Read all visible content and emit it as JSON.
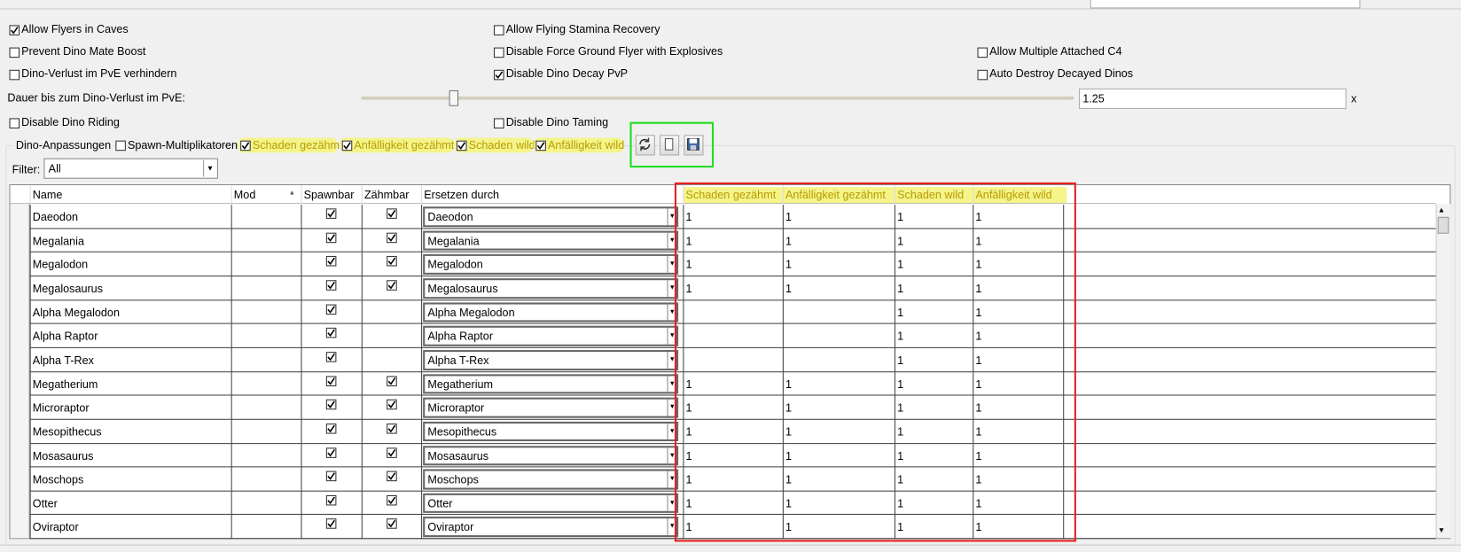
{
  "general_options": [
    {
      "label": "Allow Flyers in Caves",
      "checked": true
    },
    {
      "label": "Allow Flying Stamina Recovery",
      "checked": false
    },
    {
      "label": "Prevent Dino Mate Boost",
      "checked": false
    },
    {
      "label": "Disable Force Ground Flyer with Explosives",
      "checked": false
    },
    {
      "label": "Allow Multiple Attached C4",
      "checked": false
    },
    {
      "label": "Dino-Verlust im PvE verhindern",
      "checked": false
    },
    {
      "label": "Disable Dino Decay PvP",
      "checked": true
    },
    {
      "label": "Auto Destroy Decayed Dinos",
      "checked": false
    },
    {
      "label": "Disable Dino Riding",
      "checked": false
    },
    {
      "label": "Disable Dino Taming",
      "checked": false
    }
  ],
  "dino_loss_duration": {
    "label": "Dauer bis zum Dino-Verlust im PvE:",
    "value": 1.25,
    "unit": "x"
  },
  "dino_adjustments": {
    "title": "Dino-Anpassungen",
    "options": [
      {
        "label": "Spawn-Multiplikatoren",
        "checked": false,
        "highlighted": false
      },
      {
        "label": "Schaden gezähmt",
        "checked": true,
        "highlighted": true
      },
      {
        "label": "Anfälligkeit gezähmt",
        "checked": true,
        "highlighted": true
      },
      {
        "label": "Schaden wild",
        "checked": true,
        "highlighted": true
      },
      {
        "label": "Anfälligkeit wild",
        "checked": true,
        "highlighted": true
      }
    ],
    "filter_label": "Filter:",
    "filter_value": "All"
  },
  "table": {
    "columns": [
      "Name",
      "Mod",
      "Spawnbar",
      "Zähmbar",
      "Ersetzen durch",
      "Schaden gezähmt",
      "Anfälligkeit gezähmt",
      "Schaden wild",
      "Anfälligkeit wild"
    ],
    "rows": [
      {
        "name": "Daeodon",
        "spawnable": true,
        "tameable": true,
        "replace": "Daeodon",
        "values": [
          1,
          1,
          1,
          1
        ]
      },
      {
        "name": "Megalania",
        "spawnable": true,
        "tameable": true,
        "replace": "Megalania",
        "values": [
          1,
          1,
          1,
          1
        ]
      },
      {
        "name": "Megalodon",
        "spawnable": true,
        "tameable": true,
        "replace": "Megalodon",
        "values": [
          1,
          1,
          1,
          1
        ]
      },
      {
        "name": "Megalosaurus",
        "spawnable": true,
        "tameable": true,
        "replace": "Megalosaurus",
        "values": [
          1,
          1,
          1,
          1
        ]
      },
      {
        "name": "Alpha Megalodon",
        "spawnable": true,
        "tameable": false,
        "replace": "Alpha Megalodon",
        "values": [
          null,
          null,
          1,
          1
        ]
      },
      {
        "name": "Alpha Raptor",
        "spawnable": true,
        "tameable": false,
        "replace": "Alpha Raptor",
        "values": [
          null,
          null,
          1,
          1
        ]
      },
      {
        "name": "Alpha T-Rex",
        "spawnable": true,
        "tameable": false,
        "replace": "Alpha T-Rex",
        "values": [
          null,
          null,
          1,
          1
        ]
      },
      {
        "name": "Megatherium",
        "spawnable": true,
        "tameable": true,
        "replace": "Megatherium",
        "values": [
          1,
          1,
          1,
          1
        ]
      },
      {
        "name": "Microraptor",
        "spawnable": true,
        "tameable": true,
        "replace": "Microraptor",
        "values": [
          1,
          1,
          1,
          1
        ]
      },
      {
        "name": "Mesopithecus",
        "spawnable": true,
        "tameable": true,
        "replace": "Mesopithecus",
        "values": [
          1,
          1,
          1,
          1
        ]
      },
      {
        "name": "Mosasaurus",
        "spawnable": true,
        "tameable": true,
        "replace": "Mosasaurus",
        "values": [
          1,
          1,
          1,
          1
        ]
      },
      {
        "name": "Moschops",
        "spawnable": true,
        "tameable": true,
        "replace": "Moschops",
        "values": [
          1,
          1,
          1,
          1
        ]
      },
      {
        "name": "Otter",
        "spawnable": true,
        "tameable": true,
        "replace": "Otter",
        "values": [
          1,
          1,
          1,
          1
        ]
      },
      {
        "name": "Oviraptor",
        "spawnable": true,
        "tameable": true,
        "replace": "Oviraptor",
        "values": [
          1,
          1,
          1,
          1
        ]
      }
    ]
  }
}
